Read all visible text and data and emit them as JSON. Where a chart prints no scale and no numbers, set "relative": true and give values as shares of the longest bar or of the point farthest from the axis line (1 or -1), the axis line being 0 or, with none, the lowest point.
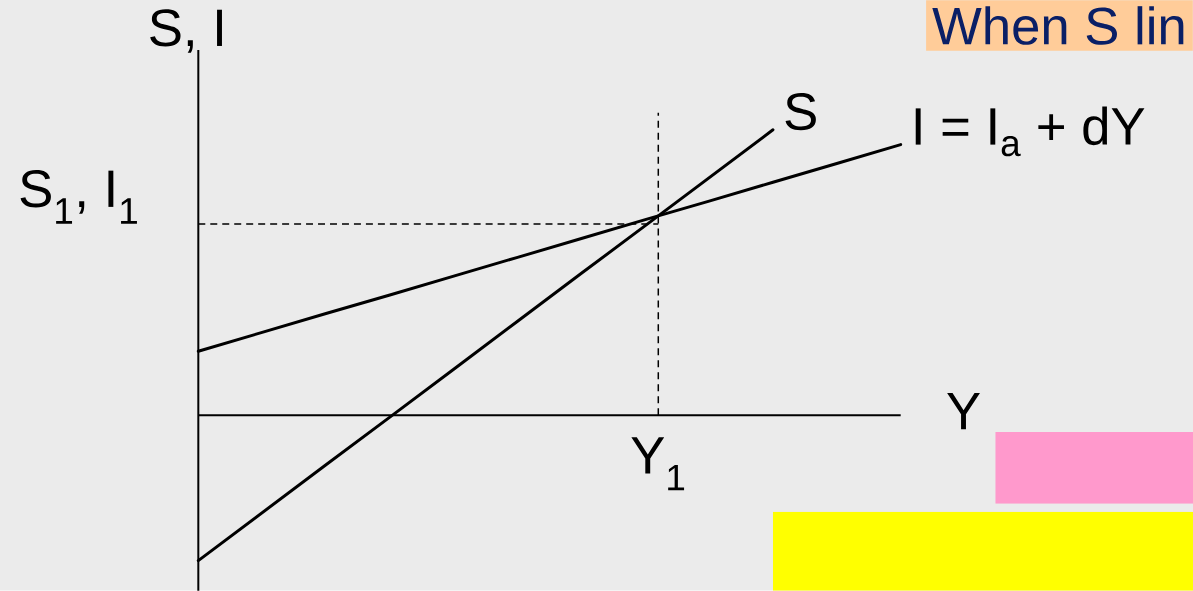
{
  "chart_data": {
    "type": "line",
    "title": "When S lin",
    "xlabel": "Y",
    "ylabel": "S, I",
    "relative": true,
    "categories": [
      null,
      null,
      null,
      null,
      null,
      null,
      null,
      null,
      null,
      null,
      null,
      null
    ],
    "series": [
      {
        "name": "S",
        "color": "#000000",
        "values": [
          -0.51,
          -0.342,
          -0.174,
          -0.007,
          0.161,
          0.329,
          0.497,
          0.664,
          0.832,
          1.0,
          null,
          null
        ]
      },
      {
        "name": "I = I$_{a}$ + dY",
        "color": "#000000",
        "values": [
          0.224,
          0.29,
          0.356,
          0.421,
          0.487,
          0.553,
          0.619,
          0.685,
          0.75,
          0.816,
          0.882,
          0.948
        ]
      }
    ],
    "ref_lines": [
      {
        "axis": "y",
        "value": 0.67,
        "label": "S$_{1}$, I$_{1}$",
        "line_style": "dashed"
      }
    ],
    "annotations": [
      "Y$_{1}$"
    ],
    "line_style": "solid"
  }
}
